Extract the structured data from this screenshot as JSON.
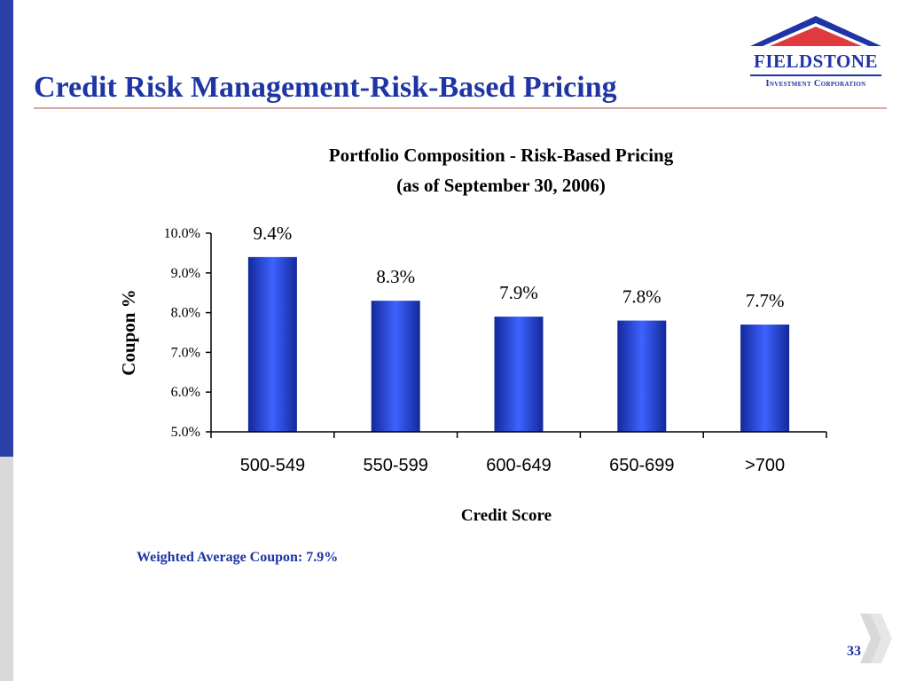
{
  "slide": {
    "title": "Credit Risk Management-Risk-Based Pricing",
    "page_number": "33",
    "footnote": "Weighted Average Coupon: 7.9%"
  },
  "logo": {
    "name": "FIELDSTONE",
    "subtitle": "Investment Corporation",
    "colors": {
      "roof": "#1f35a5",
      "roof_inner": "#e03a3e"
    }
  },
  "colors": {
    "accent": "#1f35a5",
    "bar": "#2b4ff0",
    "title_rule": "#d8a7a0",
    "left_bar": "#2a3fa8"
  },
  "chart_data": {
    "type": "bar",
    "title": "Portfolio Composition - Risk-Based Pricing",
    "subtitle": "(as of September 30, 2006)",
    "xlabel": "Credit Score",
    "ylabel": "Coupon %",
    "categories": [
      "500-549",
      "550-599",
      "600-649",
      "650-699",
      ">700"
    ],
    "values": [
      9.4,
      8.3,
      7.9,
      7.8,
      7.7
    ],
    "data_labels": [
      "9.4%",
      "8.3%",
      "7.9%",
      "7.8%",
      "7.7%"
    ],
    "ylim": [
      5.0,
      10.0
    ],
    "yticks": [
      5.0,
      6.0,
      7.0,
      8.0,
      9.0,
      10.0
    ],
    "ytick_labels": [
      "5.0%",
      "6.0%",
      "7.0%",
      "8.0%",
      "9.0%",
      "10.0%"
    ],
    "grid": false,
    "legend": "none"
  }
}
